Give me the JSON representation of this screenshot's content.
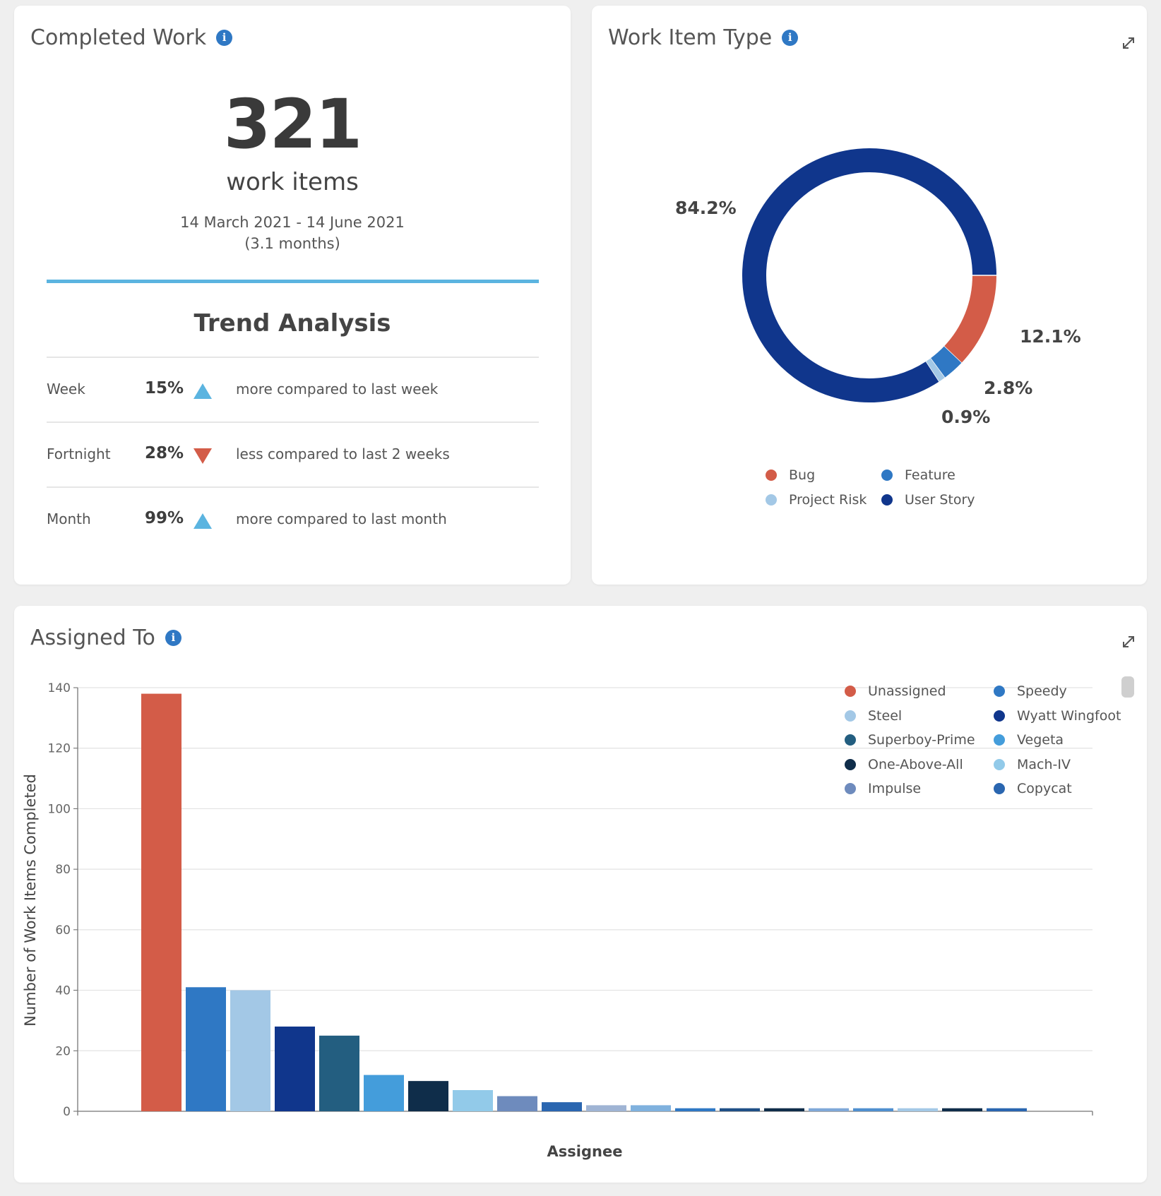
{
  "completed_work": {
    "title": "Completed Work",
    "count": "321",
    "unit": "work items",
    "date_range": "14 March 2021 - 14 June 2021",
    "duration": "(3.1 months)",
    "trend_title": "Trend Analysis",
    "trends": [
      {
        "period": "Week",
        "percent": "15%",
        "direction": "up",
        "description": "more compared to last week"
      },
      {
        "period": "Fortnight",
        "percent": "28%",
        "direction": "down",
        "description": "less compared to last 2 weeks"
      },
      {
        "period": "Month",
        "percent": "99%",
        "direction": "up",
        "description": "more compared to last month"
      }
    ],
    "colors": {
      "up": "#5bb4e0",
      "down": "#d35c48",
      "rule": "#5bb4e0"
    }
  },
  "work_item_type": {
    "title": "Work Item Type",
    "labels": {
      "user_story": "84.2%",
      "bug": "12.1%",
      "feature": "2.8%",
      "project_risk": "0.9%"
    },
    "legend": [
      {
        "label": "Bug",
        "color": "#d35c48"
      },
      {
        "label": "Feature",
        "color": "#2f78c4"
      },
      {
        "label": "Project Risk",
        "color": "#a3c8e6"
      },
      {
        "label": "User Story",
        "color": "#10368c"
      }
    ]
  },
  "assigned_to": {
    "title": "Assigned To",
    "legend": [
      {
        "label": "Unassigned",
        "color": "#d35c48"
      },
      {
        "label": "Speedy",
        "color": "#2f78c4"
      },
      {
        "label": "Steel",
        "color": "#a3c8e6"
      },
      {
        "label": "Wyatt Wingfoot",
        "color": "#10368c"
      },
      {
        "label": "Superboy-Prime",
        "color": "#235e80"
      },
      {
        "label": "Vegeta",
        "color": "#449ddb"
      },
      {
        "label": "One-Above-All",
        "color": "#0f2d4a"
      },
      {
        "label": "Mach-IV",
        "color": "#92cae9"
      },
      {
        "label": "Impulse",
        "color": "#6e8bbd"
      },
      {
        "label": "Copycat",
        "color": "#2a66b0"
      }
    ]
  },
  "chart_data": [
    {
      "type": "pie",
      "title": "Work Item Type",
      "categories": [
        "User Story",
        "Bug",
        "Feature",
        "Project Risk"
      ],
      "values": [
        84.2,
        12.1,
        2.8,
        0.9
      ],
      "colors": [
        "#10368c",
        "#d35c48",
        "#2f78c4",
        "#a3c8e6"
      ],
      "donut": true
    },
    {
      "type": "bar",
      "title": "Assigned To",
      "xlabel": "Assignee",
      "ylabel": "Number of Work Items Completed",
      "ylim": [
        0,
        140
      ],
      "yticks": [
        "0",
        "20",
        "40",
        "60",
        "80",
        "100",
        "120",
        "140"
      ],
      "values": [
        138,
        41,
        40,
        28,
        25,
        12,
        10,
        7,
        5,
        3,
        2,
        2,
        1,
        1,
        1,
        1,
        1,
        1,
        1,
        1
      ],
      "colors": [
        "#d35c48",
        "#2f78c4",
        "#a3c8e6",
        "#10368c",
        "#235e80",
        "#449ddb",
        "#0f2d4a",
        "#92cae9",
        "#6e8bbd",
        "#2a66b0",
        "#9fb4d4",
        "#7fb1de",
        "#2f78c4",
        "#1f4f86",
        "#0f2d4a",
        "#7fa8d8",
        "#4f8fcf",
        "#a3c8e6",
        "#0f2d4a",
        "#2a66b0"
      ],
      "grid": true,
      "legend": "top-right"
    }
  ]
}
